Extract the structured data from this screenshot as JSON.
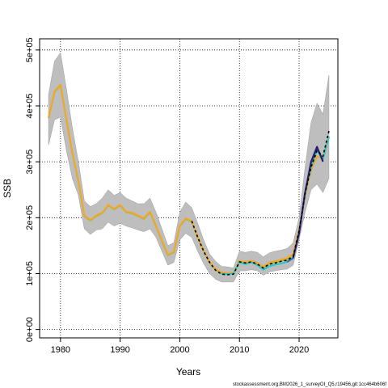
{
  "chart_data": {
    "type": "line",
    "title": "",
    "xlabel": "Years",
    "ylabel": "SSB",
    "xlim": [
      1976.5,
      2026.5
    ],
    "ylim": [
      -15000,
      520000
    ],
    "x_ticks": [
      1980,
      1990,
      2000,
      2010,
      2020
    ],
    "x_tick_labels": [
      "1980",
      "1990",
      "2000",
      "2010",
      "2020"
    ],
    "y_ticks": [
      0,
      100000,
      200000,
      300000,
      400000,
      500000
    ],
    "y_tick_labels": [
      "0e+00",
      "1e+05",
      "2e+05",
      "3e+05",
      "4e+05",
      "5e+05"
    ],
    "grid": true,
    "grid_style": "dotted",
    "colors": {
      "band": "#bebebe",
      "band_edge": "#9a9a9a",
      "green": "#8fbc3b",
      "orange": "#f5a623",
      "teal": "#2ec4c4",
      "blue": "#2b6cb0",
      "navy": "#2a1a6e",
      "black": "#000000",
      "grid": "#000000"
    },
    "years": [
      1978,
      1979,
      1980,
      1981,
      1982,
      1983,
      1984,
      1985,
      1986,
      1987,
      1988,
      1989,
      1990,
      1991,
      1992,
      1993,
      1994,
      1995,
      1996,
      1997,
      1998,
      1999,
      2000,
      2001,
      2002,
      2003,
      2004,
      2005,
      2006,
      2007,
      2008,
      2009,
      2010,
      2011,
      2012,
      2013,
      2014,
      2015,
      2016,
      2017,
      2018,
      2019,
      2020,
      2021,
      2022,
      2023,
      2024,
      2025
    ],
    "band_upper": [
      420000,
      480000,
      495000,
      430000,
      360000,
      300000,
      230000,
      220000,
      225000,
      235000,
      250000,
      240000,
      245000,
      235000,
      230000,
      225000,
      225000,
      235000,
      210000,
      180000,
      150000,
      155000,
      210000,
      228000,
      218000,
      190000,
      160000,
      135000,
      122000,
      113000,
      112000,
      110000,
      140000,
      138000,
      140000,
      138000,
      130000,
      137000,
      140000,
      142000,
      145000,
      155000,
      200000,
      290000,
      370000,
      405000,
      385000,
      455000
    ],
    "band_lower": [
      330000,
      375000,
      380000,
      320000,
      270000,
      240000,
      180000,
      170000,
      178000,
      180000,
      192000,
      185000,
      190000,
      185000,
      182000,
      178000,
      175000,
      180000,
      165000,
      140000,
      115000,
      120000,
      160000,
      172000,
      165000,
      140000,
      118000,
      100000,
      90000,
      85000,
      85000,
      85000,
      105000,
      105000,
      107000,
      105000,
      97000,
      103000,
      105000,
      107000,
      108000,
      115000,
      160000,
      210000,
      250000,
      260000,
      245000,
      270000
    ],
    "series": [
      {
        "name": "",
        "color": "green",
        "values": [
          378000,
          425000,
          437000,
          375000,
          315000,
          265000,
          203000,
          195000,
          203000,
          208000,
          222000,
          215000,
          222000,
          210000,
          208000,
          203000,
          198000,
          210000,
          185000,
          158000,
          133000,
          138000,
          185000,
          198000,
          193000,
          165000,
          140000,
          120000,
          107000,
          100000,
          100000,
          100000,
          122000,
          120000,
          122000,
          118000,
          110000,
          118000,
          120000,
          123000,
          126000,
          133000,
          178000,
          240000,
          285000,
          310000,
          305000,
          345000
        ]
      },
      {
        "name": "",
        "color": "orange",
        "values": [
          379000,
          426000,
          438000,
          376000,
          316000,
          266000,
          204000,
          196000,
          204000,
          209000,
          223000,
          216000,
          223000,
          211000,
          209000,
          204000,
          199000,
          211000,
          186000,
          159000,
          134000,
          139000,
          186000,
          199000,
          194000,
          166000,
          141000,
          121000,
          108000,
          102000,
          101000,
          101000,
          123000,
          121000,
          123000,
          119000,
          112000,
          120000,
          122000,
          125000,
          128000,
          135000,
          179000,
          241000,
          285000,
          310000,
          305000,
          345000
        ]
      },
      {
        "name": "",
        "color": "teal",
        "start_index": 29,
        "values": [
          100000,
          99000,
          100000,
          120000,
          117000,
          120000,
          115000,
          107000,
          113000,
          116000,
          118000,
          121000,
          128000,
          175000,
          245000,
          290000,
          320000,
          305000,
          345000
        ]
      },
      {
        "name": "",
        "color": "blue",
        "start_index": 40,
        "values": [
          121000,
          128000,
          172000,
          245000,
          298000,
          325000,
          303000
        ]
      },
      {
        "name": "",
        "color": "navy",
        "start_index": 41,
        "values": [
          128000,
          172000,
          245000,
          300000,
          327000,
          300000
        ]
      },
      {
        "name": "",
        "color": "black",
        "dashed": true,
        "start_index": 24,
        "values": [
          194000,
          165000,
          140000,
          120000,
          106000,
          99000,
          98000,
          99000,
          121000,
          119000,
          121000,
          117000,
          110000,
          117000,
          119000,
          122000,
          124000,
          131000,
          177000,
          243000,
          290000,
          320000,
          310000,
          355000
        ]
      }
    ]
  },
  "footer": {
    "text": "stockassessment.org,BM2026_1_surveyOI_Q5,r19456,git:1cc464b606f"
  }
}
